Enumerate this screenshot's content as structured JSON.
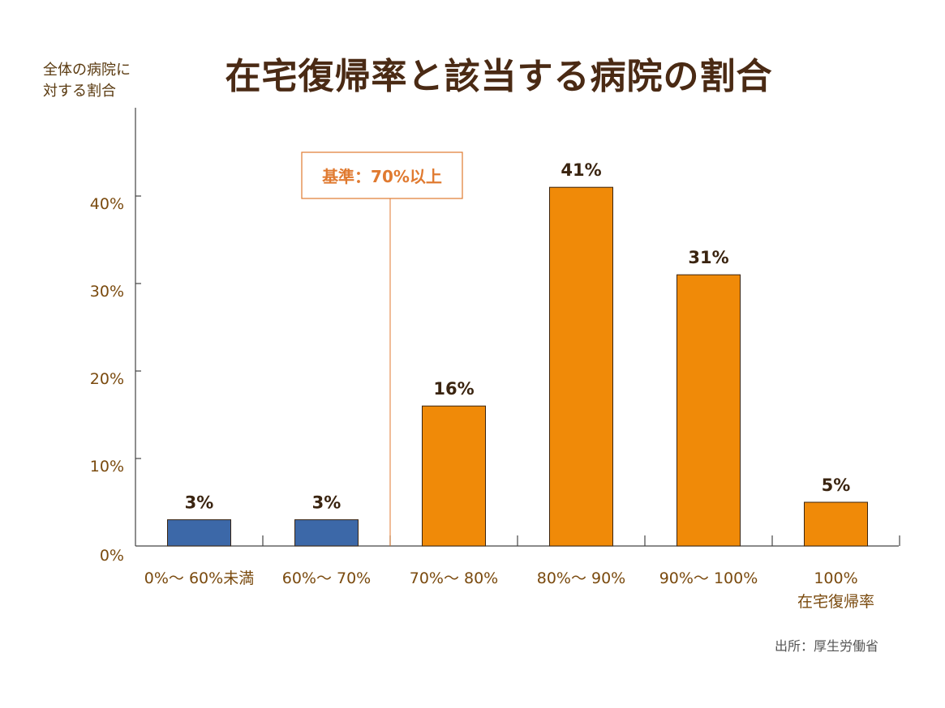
{
  "chart_data": {
    "type": "bar",
    "title": "在宅復帰率と該当する病院の割合",
    "ylabel": [
      "全体の病院に",
      "対する割合"
    ],
    "categories": [
      [
        "0%～ 60%未満"
      ],
      [
        "60%～ 70%"
      ],
      [
        "70%～ 80%"
      ],
      [
        "80%～ 90%"
      ],
      [
        "90%～ 100%"
      ],
      [
        "100%",
        "在宅復帰率"
      ]
    ],
    "values": [
      3,
      3,
      16,
      41,
      31,
      5
    ],
    "value_labels": [
      "3%",
      "3%",
      "16%",
      "41%",
      "31%",
      "5%"
    ],
    "bar_colors": [
      "#3c68a8",
      "#3c68a8",
      "#f08a08",
      "#f08a08",
      "#f08a08",
      "#f08a08"
    ],
    "ylim": [
      0,
      50
    ],
    "yticks": [
      0,
      10,
      20,
      30,
      40
    ],
    "ytick_labels": [
      "0%",
      "10%",
      "20%",
      "30%",
      "40%"
    ],
    "grid": false,
    "annotation": {
      "text": "基準：70%以上",
      "at_category_boundary": 2,
      "color": "#e07a30"
    },
    "source": "出所：厚生労働省"
  },
  "colors": {
    "title": "#4a2a14",
    "axis": "#444444",
    "tick_label": "#7a4a0e",
    "value_label": "#3a2410",
    "bar_edge": "#3a2410"
  }
}
